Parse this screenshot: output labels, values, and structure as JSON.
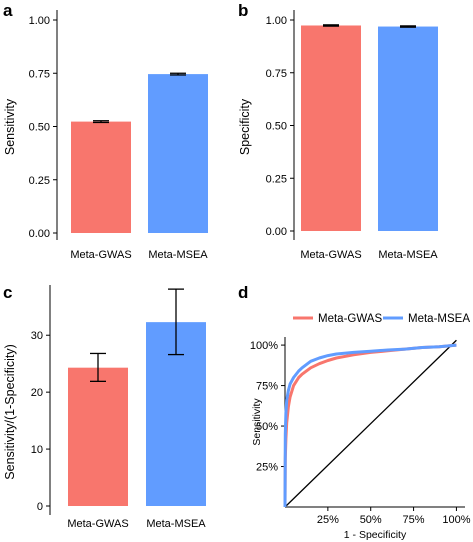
{
  "colors": {
    "meta_gwas": "#F8766D",
    "meta_msea": "#619CFF"
  },
  "chart_data": [
    {
      "panel": "a",
      "type": "bar",
      "categories": [
        "Meta-GWAS",
        "Meta-MSEA"
      ],
      "values": [
        0.523,
        0.746
      ],
      "error_low": [
        0.519,
        0.742
      ],
      "error_high": [
        0.527,
        0.75
      ],
      "xlabel": "",
      "ylabel": "Sensitivity",
      "ylim": [
        0,
        1.0
      ],
      "yticks": [
        "0.00",
        "0.25",
        "0.50",
        "0.75",
        "1.00"
      ],
      "ytick_values": [
        0,
        0.25,
        0.5,
        0.75,
        1.0
      ],
      "grid": false
    },
    {
      "panel": "b",
      "type": "bar",
      "categories": [
        "Meta-GWAS",
        "Meta-MSEA"
      ],
      "values": [
        0.974,
        0.969
      ],
      "error_low": [
        0.971,
        0.966
      ],
      "error_high": [
        0.977,
        0.972
      ],
      "xlabel": "",
      "ylabel": "Specificity",
      "ylim": [
        0,
        1.0
      ],
      "yticks": [
        "0.00",
        "0.25",
        "0.50",
        "0.75",
        "1.00"
      ],
      "ytick_values": [
        0,
        0.25,
        0.5,
        0.75,
        1.0
      ],
      "grid": false
    },
    {
      "panel": "c",
      "type": "bar",
      "categories": [
        "Meta-GWAS",
        "Meta-MSEA"
      ],
      "values": [
        24.3,
        32.3
      ],
      "error_low": [
        21.9,
        26.6
      ],
      "error_high": [
        26.8,
        38.1
      ],
      "xlabel": "",
      "ylabel": "Sensitivity/(1-Specificity)",
      "ylim": [
        0,
        39
      ],
      "yticks": [
        "0",
        "10",
        "20",
        "30"
      ],
      "ytick_values": [
        0,
        10,
        20,
        30
      ],
      "grid": false
    },
    {
      "panel": "d",
      "type": "line",
      "xlabel": "1 - Specificity",
      "ylabel": "Sensitivity",
      "xlim": [
        0,
        1.05
      ],
      "ylim": [
        0,
        1.05
      ],
      "xticks": [
        "25%",
        "50%",
        "75%",
        "100%"
      ],
      "xtick_values": [
        0.25,
        0.5,
        0.75,
        1.0
      ],
      "yticks": [
        "25%",
        "50%",
        "75%",
        "100%"
      ],
      "ytick_values": [
        0.25,
        0.5,
        0.75,
        1.0
      ],
      "legend_position": "top",
      "grid": false,
      "reference_line": {
        "x": [
          0,
          1.0
        ],
        "y": [
          0,
          1.03
        ]
      },
      "series": [
        {
          "name": "Meta-GWAS",
          "color_key": "meta_gwas",
          "x": [
            0,
            0.002,
            0.005,
            0.01,
            0.02,
            0.03,
            0.05,
            0.08,
            0.1,
            0.15,
            0.2,
            0.25,
            0.3,
            0.4,
            0.5,
            0.6,
            0.7,
            0.8,
            0.9,
            1.0
          ],
          "y": [
            0,
            0.3,
            0.42,
            0.52,
            0.62,
            0.68,
            0.75,
            0.8,
            0.82,
            0.86,
            0.885,
            0.905,
            0.92,
            0.94,
            0.955,
            0.965,
            0.975,
            0.985,
            0.99,
            1.0
          ]
        },
        {
          "name": "Meta-MSEA",
          "color_key": "meta_msea",
          "x": [
            0,
            0.002,
            0.005,
            0.01,
            0.02,
            0.03,
            0.05,
            0.08,
            0.1,
            0.15,
            0.2,
            0.25,
            0.3,
            0.4,
            0.5,
            0.6,
            0.7,
            0.8,
            0.9,
            1.0
          ],
          "y": [
            0,
            0.45,
            0.58,
            0.66,
            0.72,
            0.76,
            0.8,
            0.84,
            0.86,
            0.9,
            0.92,
            0.935,
            0.945,
            0.955,
            0.962,
            0.97,
            0.975,
            0.985,
            0.99,
            1.0
          ]
        }
      ]
    }
  ]
}
